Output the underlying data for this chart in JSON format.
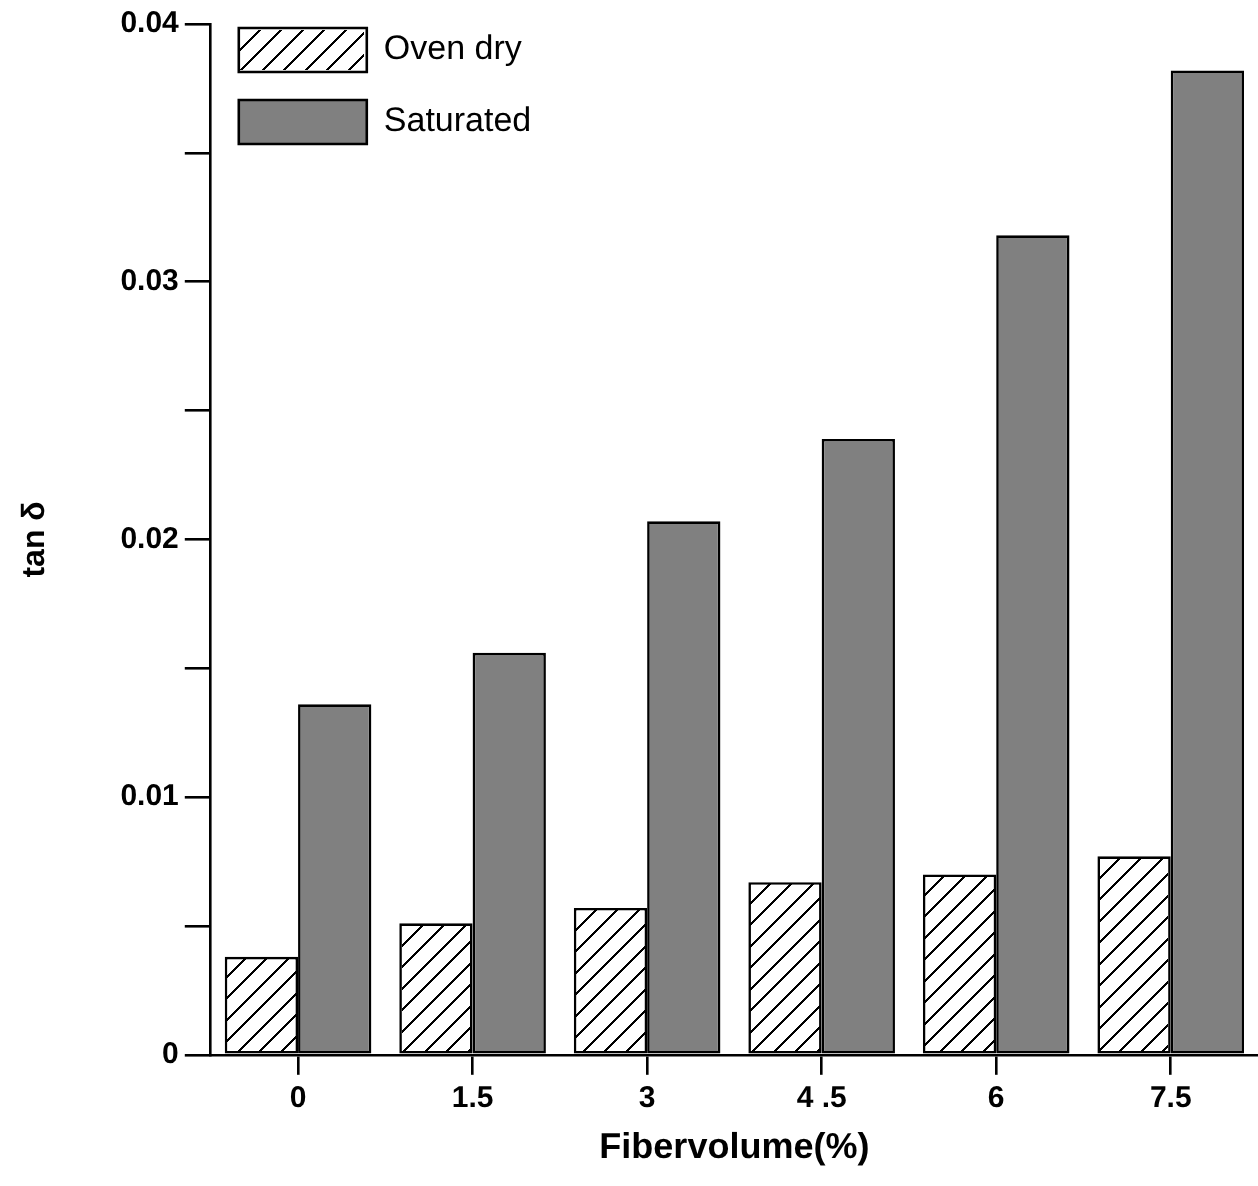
{
  "chart_data": {
    "type": "bar",
    "xlabel": "Fibervolume(%)",
    "ylabel": "tan δ",
    "categories": [
      "0",
      "1.5",
      "3",
      "4 .5",
      "6",
      "7.5"
    ],
    "series": [
      {
        "name": "Oven dry",
        "color": "#ffffff",
        "values": [
          0.0038,
          0.0051,
          0.0057,
          0.0067,
          0.007,
          0.0077
        ]
      },
      {
        "name": "Saturated",
        "color": "#808080",
        "values": [
          0.0136,
          0.0156,
          0.0207,
          0.0239,
          0.0318,
          0.0382
        ]
      }
    ],
    "ylim": [
      0,
      0.04
    ],
    "yticks": [
      0,
      {
        "value": 0.005,
        "label": null
      },
      0.01,
      {
        "value": 0.015,
        "label": null
      },
      0.02,
      {
        "value": 0.025,
        "label": null
      },
      0.03,
      {
        "value": 0.035,
        "label": null
      },
      0.04
    ],
    "grid": false,
    "legend": "top left"
  }
}
